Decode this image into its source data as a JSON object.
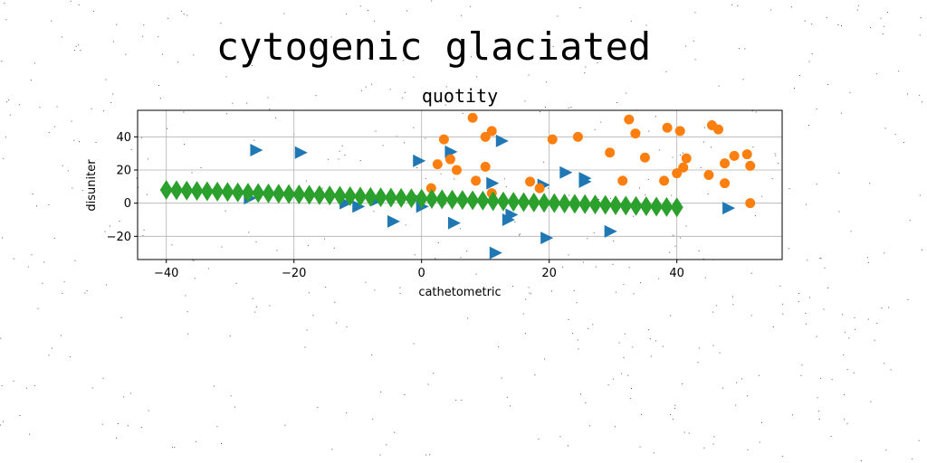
{
  "suptitle": "cytogenic glaciated",
  "chart_data": {
    "type": "scatter",
    "title": "quotity",
    "xlabel": "cathetometric",
    "ylabel": "disuniter",
    "xlim": [
      -44.5,
      56.5
    ],
    "ylim": [
      -34,
      56
    ],
    "xticks": [
      -40,
      -20,
      0,
      20,
      40
    ],
    "xtick_labels": [
      "−40",
      "−20",
      "0",
      "20",
      "40"
    ],
    "yticks": [
      -20,
      0,
      20,
      40
    ],
    "ytick_labels": [
      "−20",
      "0",
      "20",
      "40"
    ],
    "grid": true,
    "legend": "none",
    "series": [
      {
        "marker": "triangle-right",
        "color": "#1f77b4",
        "points": [
          [
            -26,
            32
          ],
          [
            -19,
            30.5
          ],
          [
            -27,
            3
          ],
          [
            -12,
            0
          ],
          [
            -10,
            -2
          ],
          [
            -4.5,
            -11
          ],
          [
            -7,
            2
          ],
          [
            -1,
            3
          ],
          [
            0,
            -2
          ],
          [
            -0.5,
            25.5
          ],
          [
            4.5,
            31
          ],
          [
            5,
            -12
          ],
          [
            12.5,
            37.5
          ],
          [
            11,
            12
          ],
          [
            13.5,
            -10
          ],
          [
            14,
            -7
          ],
          [
            11.5,
            -30
          ],
          [
            19,
            11
          ],
          [
            19.5,
            -21
          ],
          [
            22.5,
            18.5
          ],
          [
            25.5,
            15
          ],
          [
            25.5,
            13
          ],
          [
            29.5,
            -17
          ],
          [
            48,
            -3
          ]
        ]
      },
      {
        "marker": "circle",
        "color": "#ff7f0e",
        "points": [
          [
            8,
            51.5
          ],
          [
            3.5,
            38.5
          ],
          [
            10,
            40
          ],
          [
            11,
            43.5
          ],
          [
            2.5,
            23.5
          ],
          [
            4.5,
            26.5
          ],
          [
            5.5,
            20
          ],
          [
            8.5,
            13.5
          ],
          [
            10,
            22
          ],
          [
            1.5,
            9
          ],
          [
            11,
            6
          ],
          [
            17,
            13
          ],
          [
            18.5,
            9
          ],
          [
            20.5,
            38.5
          ],
          [
            24.5,
            40
          ],
          [
            29.5,
            30.5
          ],
          [
            32.5,
            50.5
          ],
          [
            33.5,
            42
          ],
          [
            35,
            27.5
          ],
          [
            31.5,
            13.5
          ],
          [
            38.5,
            45.5
          ],
          [
            40.5,
            43.5
          ],
          [
            38,
            13.5
          ],
          [
            40,
            18
          ],
          [
            41.5,
            27
          ],
          [
            41,
            21.5
          ],
          [
            45.5,
            47
          ],
          [
            46.5,
            44.5
          ],
          [
            45,
            17
          ],
          [
            47.5,
            24
          ],
          [
            49,
            28.5
          ],
          [
            51,
            29.5
          ],
          [
            51.5,
            22.5
          ],
          [
            47.5,
            12
          ],
          [
            51.5,
            0
          ]
        ]
      },
      {
        "marker": "thin-diamond",
        "color": "#2ca02c",
        "x_start": -40,
        "x_end": 40,
        "x_step": 1.6,
        "y_start": 8,
        "y_end": -2.5
      }
    ]
  }
}
